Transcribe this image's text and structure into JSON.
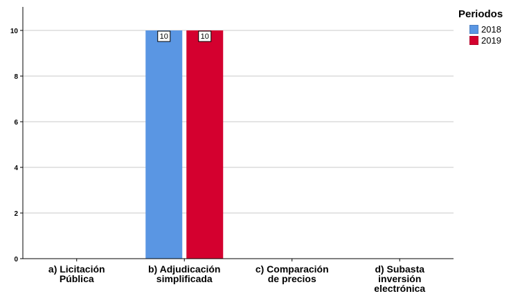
{
  "chart_data": {
    "type": "bar",
    "categories": [
      [
        "a) Licitación",
        "Pública"
      ],
      [
        "b) Adjudicación",
        "simplificada"
      ],
      [
        "c) Comparación",
        "de precios"
      ],
      [
        "d) Subasta",
        "inversión",
        "electrónica"
      ]
    ],
    "series": [
      {
        "name": "2018",
        "color": "#5a96e3",
        "values": [
          0,
          10,
          0,
          0
        ]
      },
      {
        "name": "2019",
        "color": "#d4002f",
        "values": [
          0,
          10,
          0,
          0
        ]
      }
    ],
    "data_labels": [
      {
        "series": 0,
        "category": 1,
        "text": "10"
      },
      {
        "series": 1,
        "category": 1,
        "text": "10"
      }
    ],
    "yticks": [
      0,
      2,
      4,
      6,
      8,
      10
    ],
    "ylim": [
      0,
      10
    ],
    "grid": true,
    "legend_title": "Periodos",
    "legend_position": "top-right"
  }
}
